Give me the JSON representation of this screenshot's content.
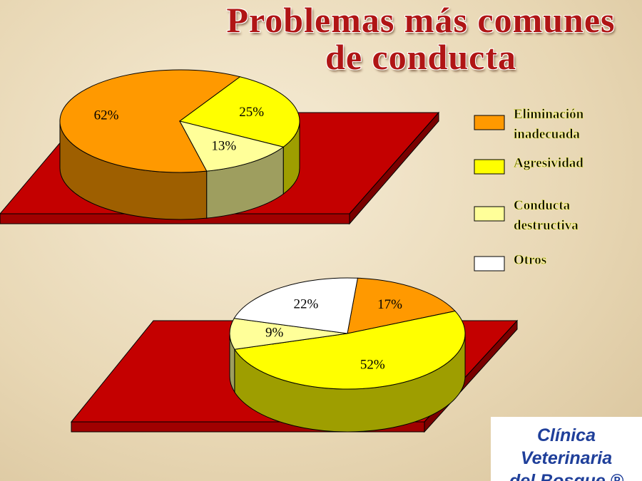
{
  "title": "Problemas más comunes de conducta",
  "chart_data": [
    {
      "type": "pie",
      "categories": [
        "Eliminación inadecuada",
        "Agresividad",
        "Conducta destructiva"
      ],
      "values": [
        62,
        25,
        13
      ],
      "value_labels": [
        "62%",
        "25%",
        "13%"
      ],
      "colors": [
        "#ff9900",
        "#ffff00",
        "#ffff99"
      ]
    },
    {
      "type": "pie",
      "categories": [
        "Eliminación inadecuada",
        "Agresividad",
        "Conducta destructiva",
        "Otros"
      ],
      "values": [
        17,
        52,
        9,
        22
      ],
      "value_labels": [
        "17%",
        "52%",
        "9%",
        "22%"
      ],
      "colors": [
        "#ff9900",
        "#ffff00",
        "#ffff99",
        "#ffffff"
      ]
    }
  ],
  "logo": {
    "line1": "Clínica Veterinaria",
    "line2": "del Bosque ®"
  }
}
